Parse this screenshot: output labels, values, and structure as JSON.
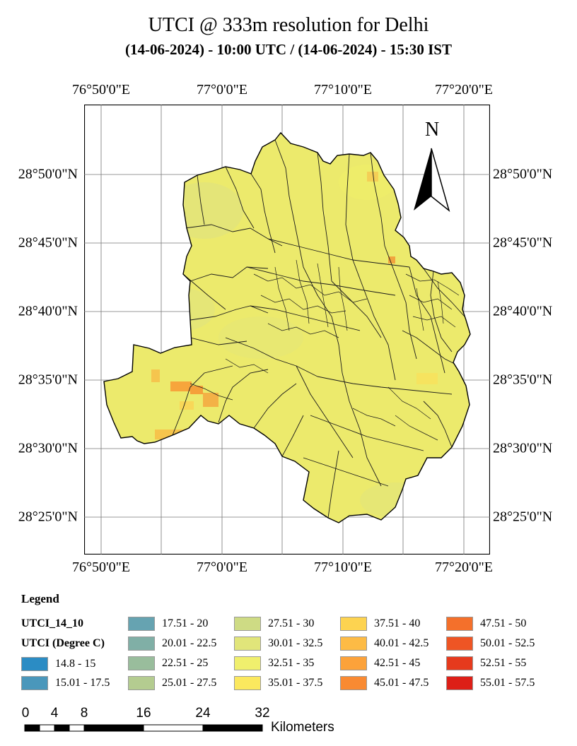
{
  "title": "UTCI @ 333m resolution for Delhi",
  "subtitle": "(14-06-2024) - 10:00 UTC / (14-06-2024) - 15:30 IST",
  "longitudes": [
    "76°50'0\"E",
    "77°0'0\"E",
    "77°10'0\"E",
    "77°20'0\"E"
  ],
  "latitudes": [
    "28°50'0\"N",
    "28°45'0\"N",
    "28°40'0\"N",
    "28°35'0\"N",
    "28°30'0\"N",
    "28°25'0\"N"
  ],
  "north_arrow_label": "N",
  "legend": {
    "title": "Legend",
    "layer": "UTCI_14_10",
    "field": "UTCI (Degree C)",
    "classes": [
      {
        "label": "14.8 - 15",
        "color": "#2b8cc4"
      },
      {
        "label": "15.01 - 17.5",
        "color": "#4a97bb"
      },
      {
        "label": "17.51 - 20",
        "color": "#66a3b1"
      },
      {
        "label": "20.01 - 22.5",
        "color": "#80afa6"
      },
      {
        "label": "22.51 - 25",
        "color": "#99bd9c"
      },
      {
        "label": "25.01 - 27.5",
        "color": "#b4cc90"
      },
      {
        "label": "27.51 - 30",
        "color": "#cedb84"
      },
      {
        "label": "30.01 - 32.5",
        "color": "#e1e57a"
      },
      {
        "label": "32.51 - 35",
        "color": "#f0ef6d"
      },
      {
        "label": "35.01 - 37.5",
        "color": "#fbe85e"
      },
      {
        "label": "37.51 - 40",
        "color": "#fdd350"
      },
      {
        "label": "40.01 - 42.5",
        "color": "#fdbb45"
      },
      {
        "label": "42.51 - 45",
        "color": "#fca23a"
      },
      {
        "label": "45.01 - 47.5",
        "color": "#f98a32"
      },
      {
        "label": "47.51 - 50",
        "color": "#f4702b"
      },
      {
        "label": "50.01 - 52.5",
        "color": "#ee5524"
      },
      {
        "label": "52.51 - 55",
        "color": "#e63a1d"
      },
      {
        "label": "55.01 - 57.5",
        "color": "#dd1f17"
      }
    ]
  },
  "scale_bar": {
    "labels": [
      "0",
      "4",
      "8",
      "16",
      "24",
      "32"
    ],
    "unit": "Kilometers"
  }
}
